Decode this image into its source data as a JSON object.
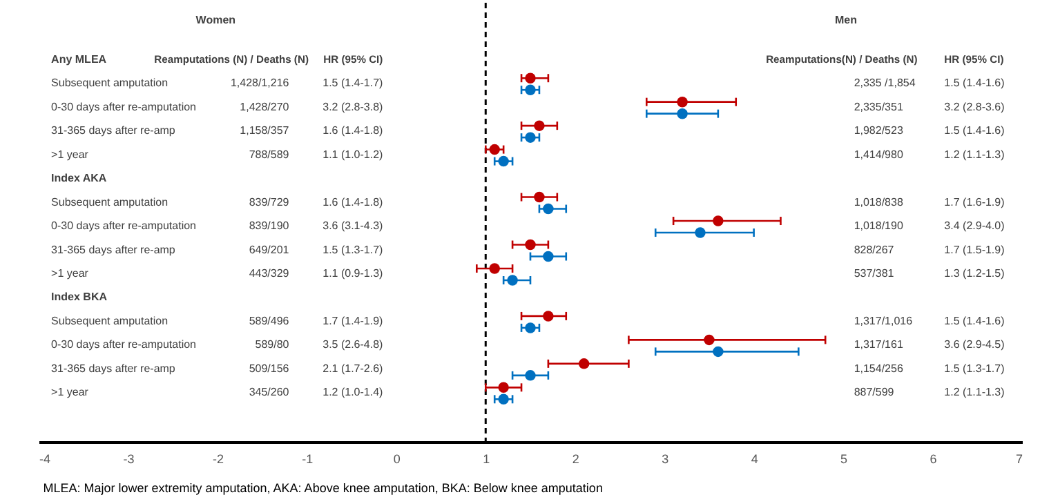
{
  "chart_data": {
    "type": "scatter",
    "orientation": "horizontal",
    "marker": "circle",
    "grid": false,
    "categories": [
      "Any MLEA",
      "Subsequent amputation",
      "0-30 days after re-amputation",
      "31-365 days after re-amp",
      ">1 year",
      "Index AKA",
      "Subsequent amputation",
      "0-30 days after re-amputation",
      "31-365 days after re-amp",
      ">1 year",
      "Index BKA",
      "Subsequent amputation",
      "0-30 days after re-amputation",
      "31-365 days after re-amp",
      ">1 year"
    ],
    "series": [
      {
        "color": "#c00000",
        "values": [
          null,
          1.5,
          3.2,
          1.6,
          1.1,
          null,
          1.6,
          3.6,
          1.5,
          1.1,
          null,
          1.7,
          3.5,
          2.1,
          1.2
        ],
        "errors": [
          null,
          [
            1.4,
            1.7
          ],
          [
            2.8,
            3.8
          ],
          [
            1.4,
            1.8
          ],
          [
            1.0,
            1.2
          ],
          null,
          [
            1.4,
            1.8
          ],
          [
            3.1,
            4.3
          ],
          [
            1.3,
            1.7
          ],
          [
            0.9,
            1.3
          ],
          null,
          [
            1.4,
            1.9
          ],
          [
            2.6,
            4.8
          ],
          [
            1.7,
            2.6
          ],
          [
            1.0,
            1.4
          ]
        ]
      },
      {
        "color": "#0070c0",
        "values": [
          null,
          1.5,
          3.2,
          1.5,
          1.2,
          null,
          1.7,
          3.4,
          1.7,
          1.3,
          null,
          1.5,
          3.6,
          1.5,
          1.2
        ],
        "errors": [
          null,
          [
            1.4,
            1.6
          ],
          [
            2.8,
            3.6
          ],
          [
            1.4,
            1.6
          ],
          [
            1.1,
            1.3
          ],
          null,
          [
            1.6,
            1.9
          ],
          [
            2.9,
            4.0
          ],
          [
            1.5,
            1.9
          ],
          [
            1.2,
            1.5
          ],
          null,
          [
            1.4,
            1.6
          ],
          [
            2.9,
            4.5
          ],
          [
            1.3,
            1.7
          ],
          [
            1.1,
            1.3
          ]
        ]
      }
    ],
    "xlim": [
      -4,
      7
    ],
    "xticks": [
      -4,
      -3,
      -2,
      -1,
      0,
      1,
      2,
      3,
      4,
      5,
      6,
      7
    ],
    "ref_lines": [
      {
        "axis": "x",
        "value": 1,
        "color": "#000000",
        "line_style": "dashed"
      }
    ],
    "annotations": [
      "Women",
      "Men",
      "Reamputations (N) / Deaths (N)",
      "HR (95% CI)",
      "Reamputations(N) / Deaths (N)",
      "HR (95% CI)",
      "1,428/1,216",
      "1,428/270",
      "1,158/357",
      "788/589",
      "839/729",
      "839/190",
      "649/201",
      "443/329",
      "589/496",
      "589/80",
      "509/156",
      "345/260",
      "2,335 /1,854",
      "2,335/351",
      "1,982/523",
      "1,414/980",
      "1,018/838",
      "1,018/190",
      "828/267",
      "537/381",
      "1,317/1,016",
      "1,317/161",
      "1,154/256",
      "887/599",
      "1.5 (1.4-1.7)",
      "3.2 (2.8-3.8)",
      "1.6 (1.4-1.8)",
      "1.1 (1.0-1.2)",
      "1.6 (1.4-1.8)",
      "3.6 (3.1-4.3)",
      "1.5 (1.3-1.7)",
      "1.1 (0.9-1.3)",
      "1.7 (1.4-1.9)",
      "3.5 (2.6-4.8)",
      "2.1 (1.7-2.6)",
      "1.2 (1.0-1.4)",
      "1.5 (1.4-1.6)",
      "3.2 (2.8-3.6)",
      "1.5 (1.4-1.6)",
      "1.2 (1.1-1.3)",
      "1.7 (1.6-1.9)",
      "3.4 (2.9-4.0)",
      "1.7 (1.5-1.9)",
      "1.3 (1.2-1.5)",
      "1.5 (1.4-1.6)",
      "3.6 (2.9-4.5)",
      "1.5 (1.3-1.7)",
      "1.2 (1.1-1.3)",
      "MLEA: Major lower extremity amputation, AKA: Above knee amputation, BKA: Below knee amputation"
    ]
  }
}
